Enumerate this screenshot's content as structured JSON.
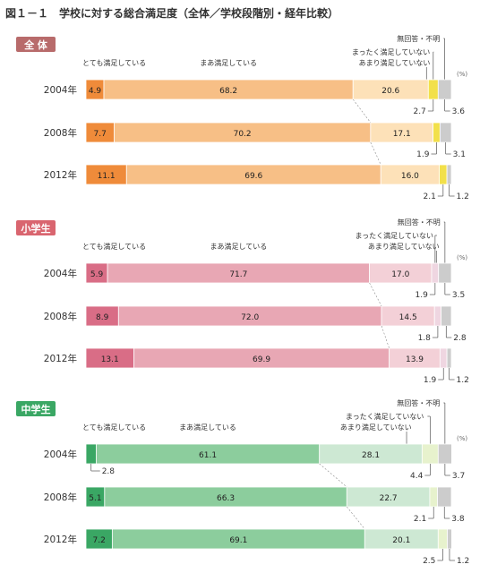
{
  "figure_title": "図１－１　学校に対する総合満足度（全体／学校段階別・経年比較）",
  "unit": "(%)",
  "colors": {
    "zentai": [
      "#ef8b3a",
      "#f7bf86",
      "#fde1b8",
      "#f2e04a",
      "#cccccc"
    ],
    "shogaku": [
      "#d96d86",
      "#e8a7b4",
      "#f3d0d7",
      "#efd6e1",
      "#cccccc"
    ],
    "chugaku": [
      "#3aa764",
      "#8ccd9d",
      "#cde8d3",
      "#e7f2cd",
      "#cccccc"
    ],
    "badge": {
      "zentai": "#b86b6b",
      "shogaku": "#d9656f",
      "chugaku": "#3aa764"
    }
  },
  "chart_data": {
    "type": "bar",
    "title": "学校に対する総合満足度（全体／学校段階別・経年比較）",
    "stacked": true,
    "orientation": "horizontal",
    "categories_legend": [
      "とても満足している",
      "まあ満足している",
      "あまり満足していない",
      "まったく満足していない",
      "無回答・不明"
    ],
    "groups": [
      {
        "key": "zentai",
        "label": "全 体",
        "rows": [
          {
            "year": "2004年",
            "values": [
              4.9,
              68.2,
              20.6,
              2.7,
              3.6
            ]
          },
          {
            "year": "2008年",
            "values": [
              7.7,
              70.2,
              17.1,
              1.9,
              3.1
            ]
          },
          {
            "year": "2012年",
            "values": [
              11.1,
              69.6,
              16.0,
              2.1,
              1.2
            ]
          }
        ]
      },
      {
        "key": "shogaku",
        "label": "小学生",
        "rows": [
          {
            "year": "2004年",
            "values": [
              5.9,
              71.7,
              17.0,
              1.9,
              3.5
            ]
          },
          {
            "year": "2008年",
            "values": [
              8.9,
              72.0,
              14.5,
              1.8,
              2.8
            ]
          },
          {
            "year": "2012年",
            "values": [
              13.1,
              69.9,
              13.9,
              1.9,
              1.2
            ]
          }
        ]
      },
      {
        "key": "chugaku",
        "label": "中学生",
        "rows": [
          {
            "year": "2004年",
            "values": [
              2.8,
              61.1,
              28.1,
              4.4,
              3.7
            ]
          },
          {
            "year": "2008年",
            "values": [
              5.1,
              66.3,
              22.7,
              2.1,
              3.8
            ]
          },
          {
            "year": "2012年",
            "values": [
              7.2,
              69.1,
              20.1,
              2.5,
              1.2
            ]
          }
        ]
      }
    ]
  }
}
